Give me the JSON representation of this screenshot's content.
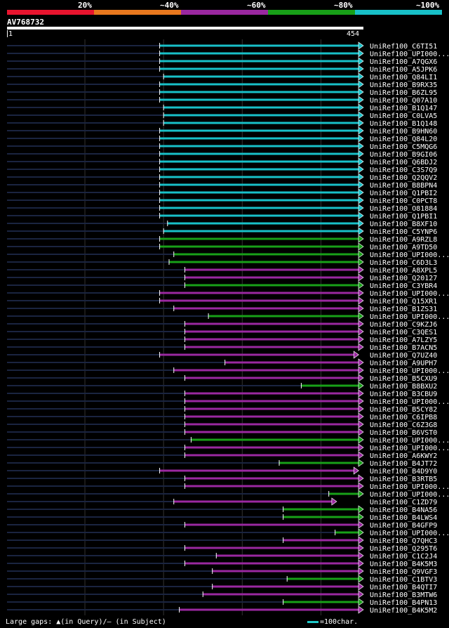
{
  "legend": {
    "segments": [
      {
        "label": "20%",
        "color": "#e8142e"
      },
      {
        "label": "~40%",
        "color": "#e8781e"
      },
      {
        "label": "~60%",
        "color": "#9a28a0"
      },
      {
        "label": "~80%",
        "color": "#18a018"
      },
      {
        "label": "~100%",
        "color": "#18c0c8"
      }
    ]
  },
  "query": {
    "id": "AV768732",
    "start": "1",
    "end": "454"
  },
  "footer": {
    "gaps_text": "Large gaps: ▲(in Query)/– (in Subject)",
    "scale_text": "=100char."
  },
  "chart_data": {
    "type": "alignment",
    "x_range": [
      1,
      454
    ],
    "rows": [
      {
        "name": "UniRef100_C6TI51",
        "start": 195,
        "end": 454,
        "color": "#18c0c8"
      },
      {
        "name": "UniRef100_UPI000...",
        "start": 195,
        "end": 454,
        "color": "#18c0c8"
      },
      {
        "name": "UniRef100_A7QGX6",
        "start": 195,
        "end": 454,
        "color": "#18c0c8"
      },
      {
        "name": "UniRef100_A5JPK6",
        "start": 195,
        "end": 454,
        "color": "#18c0c8"
      },
      {
        "name": "UniRef100_Q84LI1",
        "start": 200,
        "end": 454,
        "color": "#18c0c8"
      },
      {
        "name": "UniRef100_B9RX35",
        "start": 195,
        "end": 454,
        "color": "#18c0c8"
      },
      {
        "name": "UniRef100_B6ZL95",
        "start": 195,
        "end": 454,
        "color": "#18c0c8"
      },
      {
        "name": "UniRef100_Q07A10",
        "start": 195,
        "end": 454,
        "color": "#18c0c8"
      },
      {
        "name": "UniRef100_B1Q147",
        "start": 200,
        "end": 454,
        "color": "#18c0c8"
      },
      {
        "name": "UniRef100_C0LVA5",
        "start": 200,
        "end": 454,
        "color": "#18c0c8"
      },
      {
        "name": "UniRef100_B1Q148",
        "start": 200,
        "end": 454,
        "color": "#18c0c8"
      },
      {
        "name": "UniRef100_B9HN60",
        "start": 195,
        "end": 454,
        "color": "#18c0c8"
      },
      {
        "name": "UniRef100_Q84L20",
        "start": 195,
        "end": 454,
        "color": "#18c0c8"
      },
      {
        "name": "UniRef100_C5MQG6",
        "start": 195,
        "end": 454,
        "color": "#18c0c8"
      },
      {
        "name": "UniRef100_B9GI06",
        "start": 195,
        "end": 454,
        "color": "#18c0c8"
      },
      {
        "name": "UniRef100_Q6BDJ2",
        "start": 195,
        "end": 454,
        "color": "#18c0c8"
      },
      {
        "name": "UniRef100_C3S7Q9",
        "start": 195,
        "end": 454,
        "color": "#18c0c8"
      },
      {
        "name": "UniRef100_Q2QQV2",
        "start": 195,
        "end": 454,
        "color": "#18c0c8"
      },
      {
        "name": "UniRef100_B8BPN4",
        "start": 195,
        "end": 454,
        "color": "#18c0c8"
      },
      {
        "name": "UniRef100_Q1PBI2",
        "start": 195,
        "end": 454,
        "color": "#18c0c8"
      },
      {
        "name": "UniRef100_C0PCT8",
        "start": 195,
        "end": 454,
        "color": "#18c0c8"
      },
      {
        "name": "UniRef100_O81884",
        "start": 195,
        "end": 454,
        "color": "#18c0c8"
      },
      {
        "name": "UniRef100_Q1PBI1",
        "start": 195,
        "end": 454,
        "color": "#18c0c8"
      },
      {
        "name": "UniRef100_B8XF10",
        "start": 205,
        "end": 454,
        "color": "#18c0c8"
      },
      {
        "name": "UniRef100_C5YNP6",
        "start": 200,
        "end": 454,
        "color": "#18c0c8"
      },
      {
        "name": "UniRef100_A9RZL8",
        "start": 195,
        "end": 454,
        "color": "#18a018"
      },
      {
        "name": "UniRef100_A9TD50",
        "start": 195,
        "end": 454,
        "color": "#18a018"
      },
      {
        "name": "UniRef100_UPI000...",
        "start": 213,
        "end": 454,
        "color": "#18a018"
      },
      {
        "name": "UniRef100_C6D3L3",
        "start": 207,
        "end": 454,
        "color": "#18a018"
      },
      {
        "name": "UniRef100_A8XPL5",
        "start": 227,
        "end": 454,
        "color": "#9a28a0"
      },
      {
        "name": "UniRef100_Q20127",
        "start": 227,
        "end": 454,
        "color": "#9a28a0"
      },
      {
        "name": "UniRef100_C3YBR4",
        "start": 227,
        "end": 454,
        "color": "#18a018"
      },
      {
        "name": "UniRef100_UPI000...",
        "start": 195,
        "end": 454,
        "color": "#9a28a0"
      },
      {
        "name": "UniRef100_Q15XR1",
        "start": 195,
        "end": 454,
        "color": "#9a28a0"
      },
      {
        "name": "UniRef100_B1ZS31",
        "start": 213,
        "end": 454,
        "color": "#9a28a0"
      },
      {
        "name": "UniRef100_UPI000...",
        "start": 257,
        "end": 454,
        "color": "#18a018"
      },
      {
        "name": "UniRef100_C9KZJ6",
        "start": 227,
        "end": 454,
        "color": "#9a28a0"
      },
      {
        "name": "UniRef100_C3QES1",
        "start": 227,
        "end": 454,
        "color": "#9a28a0"
      },
      {
        "name": "UniRef100_A7LZY5",
        "start": 227,
        "end": 454,
        "color": "#9a28a0"
      },
      {
        "name": "UniRef100_B7ACN5",
        "start": 227,
        "end": 454,
        "color": "#9a28a0"
      },
      {
        "name": "UniRef100_Q7UZ40",
        "start": 195,
        "end": 448,
        "color": "#9a28a0"
      },
      {
        "name": "UniRef100_A9UPH7",
        "start": 278,
        "end": 454,
        "color": "#9a28a0"
      },
      {
        "name": "UniRef100_UPI000...",
        "start": 213,
        "end": 454,
        "color": "#9a28a0"
      },
      {
        "name": "UniRef100_B5CXU9",
        "start": 227,
        "end": 454,
        "color": "#9a28a0"
      },
      {
        "name": "UniRef100_B8BXU2",
        "start": 375,
        "end": 454,
        "color": "#18a018"
      },
      {
        "name": "UniRef100_B3CBU9",
        "start": 227,
        "end": 454,
        "color": "#9a28a0"
      },
      {
        "name": "UniRef100_UPI000...",
        "start": 227,
        "end": 454,
        "color": "#9a28a0"
      },
      {
        "name": "UniRef100_B5CY82",
        "start": 227,
        "end": 454,
        "color": "#9a28a0"
      },
      {
        "name": "UniRef100_C6IPB8",
        "start": 227,
        "end": 454,
        "color": "#9a28a0"
      },
      {
        "name": "UniRef100_C6Z3G8",
        "start": 227,
        "end": 454,
        "color": "#9a28a0"
      },
      {
        "name": "UniRef100_B6VST0",
        "start": 227,
        "end": 454,
        "color": "#9a28a0"
      },
      {
        "name": "UniRef100_UPI000...",
        "start": 235,
        "end": 454,
        "color": "#18a018"
      },
      {
        "name": "UniRef100_UPI000...",
        "start": 227,
        "end": 454,
        "color": "#9a28a0"
      },
      {
        "name": "UniRef100_A6KWY2",
        "start": 227,
        "end": 454,
        "color": "#9a28a0"
      },
      {
        "name": "UniRef100_B4JT72",
        "start": 347,
        "end": 454,
        "color": "#18a018"
      },
      {
        "name": "UniRef100_B4D9Y0",
        "start": 195,
        "end": 448,
        "color": "#9a28a0"
      },
      {
        "name": "UniRef100_B3RTB5",
        "start": 227,
        "end": 454,
        "color": "#9a28a0"
      },
      {
        "name": "UniRef100_UPI000...",
        "start": 227,
        "end": 454,
        "color": "#9a28a0"
      },
      {
        "name": "UniRef100_UPI000...",
        "start": 410,
        "end": 454,
        "color": "#18a018"
      },
      {
        "name": "UniRef100_C1ZD79",
        "start": 213,
        "end": 420,
        "color": "#9a28a0"
      },
      {
        "name": "UniRef100_B4NA56",
        "start": 352,
        "end": 454,
        "color": "#18a018"
      },
      {
        "name": "UniRef100_B4LWS4",
        "start": 352,
        "end": 454,
        "color": "#18a018"
      },
      {
        "name": "UniRef100_B4GFP9",
        "start": 227,
        "end": 454,
        "color": "#9a28a0"
      },
      {
        "name": "UniRef100_UPI000...",
        "start": 418,
        "end": 454,
        "color": "#18a018"
      },
      {
        "name": "UniRef100_Q7QHC3",
        "start": 352,
        "end": 454,
        "color": "#9a28a0"
      },
      {
        "name": "UniRef100_Q295T6",
        "start": 227,
        "end": 454,
        "color": "#9a28a0"
      },
      {
        "name": "UniRef100_C1C2J4",
        "start": 267,
        "end": 454,
        "color": "#9a28a0"
      },
      {
        "name": "UniRef100_B4K5M3",
        "start": 227,
        "end": 454,
        "color": "#9a28a0"
      },
      {
        "name": "UniRef100_Q9VGF3",
        "start": 262,
        "end": 454,
        "color": "#9a28a0"
      },
      {
        "name": "UniRef100_C1BTV3",
        "start": 357,
        "end": 454,
        "color": "#18a018"
      },
      {
        "name": "UniRef100_B4QTI7",
        "start": 262,
        "end": 454,
        "color": "#9a28a0"
      },
      {
        "name": "UniRef100_B3MTW6",
        "start": 250,
        "end": 454,
        "color": "#9a28a0"
      },
      {
        "name": "UniRef100_B4PN13",
        "start": 352,
        "end": 454,
        "color": "#18a018"
      },
      {
        "name": "UniRef100_B4K5M2",
        "start": 220,
        "end": 454,
        "color": "#9a28a0"
      }
    ]
  }
}
